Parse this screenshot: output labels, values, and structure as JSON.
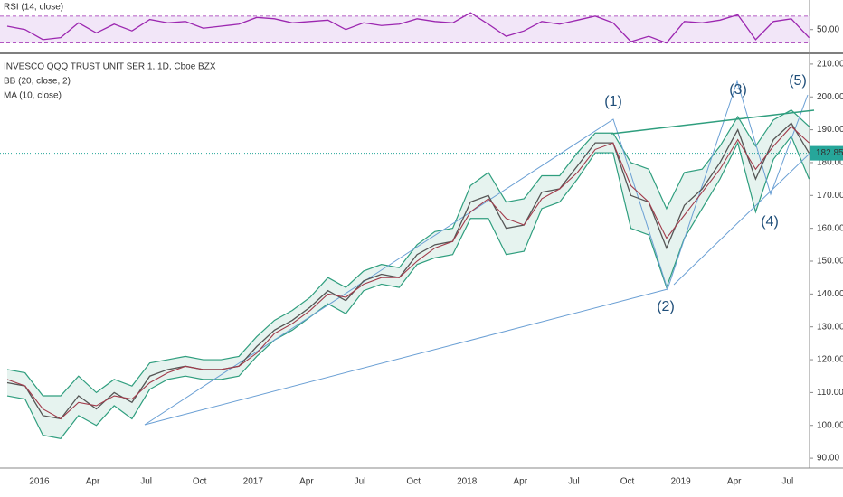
{
  "chart_data": [
    {
      "type": "line",
      "title": "RSI (14, close)",
      "categories": [
        null,
        null,
        "2016",
        null,
        null,
        "Apr",
        null,
        null,
        "Jul",
        null,
        null,
        "Oct",
        null,
        null,
        "2017",
        null,
        null,
        "Apr",
        null,
        null,
        "Jul",
        null,
        null,
        "Oct",
        null,
        null,
        "2018",
        null,
        null,
        "Apr",
        null,
        null,
        "Jul",
        null,
        null,
        "Oct",
        null,
        null,
        "2019",
        null,
        null,
        "Apr",
        null,
        null,
        "Jul",
        null
      ],
      "series": [
        {
          "color": "#9c27b0",
          "values": [
            55,
            50,
            35,
            38,
            60,
            45,
            58,
            48,
            65,
            60,
            62,
            52,
            55,
            58,
            68,
            66,
            60,
            62,
            64,
            50,
            60,
            56,
            58,
            66,
            62,
            60,
            75,
            58,
            40,
            48,
            62,
            58,
            64,
            70,
            60,
            32,
            40,
            30,
            62,
            60,
            64,
            72,
            35,
            62,
            66,
            38
          ]
        }
      ],
      "band_lines": [
        30,
        70
      ],
      "band_color": "#e9d5f3",
      "ylim": [
        16,
        94
      ],
      "yticks": [
        {
          "value": 50,
          "label": "50.00"
        }
      ]
    },
    {
      "type": "line",
      "title": "INVESCO QQQ TRUST UNIT SER 1, 1D, Cboe BZX",
      "categories": [
        null,
        null,
        "2016",
        null,
        null,
        "Apr",
        null,
        null,
        "Jul",
        null,
        null,
        "Oct",
        null,
        null,
        "2017",
        null,
        null,
        "Apr",
        null,
        null,
        "Jul",
        null,
        null,
        "Oct",
        null,
        null,
        "2018",
        null,
        null,
        "Apr",
        null,
        null,
        "Jul",
        null,
        null,
        "Oct",
        null,
        null,
        "2019",
        null,
        null,
        "Apr",
        null,
        null,
        "Jul",
        null
      ],
      "series": [
        {
          "color": "#555555",
          "values": [
            113,
            112,
            103,
            102,
            109,
            105,
            110,
            107,
            115,
            117,
            118,
            117,
            117,
            118,
            124,
            129,
            132,
            136,
            141,
            138,
            144,
            146,
            145,
            152,
            155,
            156,
            168,
            170,
            160,
            161,
            171,
            172,
            179,
            186,
            186,
            170,
            168,
            154,
            167,
            172,
            180,
            190,
            175,
            187,
            192,
            182.85
          ]
        },
        {
          "name": "MA (10, close)",
          "color": "#a23b4b",
          "values": [
            114,
            112,
            105,
            102,
            107,
            106,
            109,
            108,
            113,
            116,
            118,
            117,
            117,
            118,
            122,
            128,
            131,
            135,
            140,
            139,
            143,
            145,
            145,
            150,
            154,
            156,
            165,
            169,
            163,
            161,
            169,
            172,
            177,
            184,
            186,
            173,
            168,
            157,
            164,
            171,
            178,
            187,
            178,
            185,
            191,
            186
          ]
        }
      ],
      "bb": {
        "name": "BB (20, close, 2)",
        "color": "#2f9e7e",
        "upper": [
          117,
          116,
          109,
          109,
          115,
          110,
          114,
          112,
          119,
          120,
          121,
          120,
          120,
          121,
          127,
          132,
          135,
          139,
          145,
          142,
          147,
          149,
          148,
          155,
          159,
          160,
          173,
          177,
          168,
          169,
          176,
          176,
          183,
          189,
          189,
          180,
          178,
          166,
          177,
          178,
          185,
          194,
          185,
          193,
          196,
          191
        ],
        "lower": [
          109,
          108,
          97,
          96,
          103,
          100,
          106,
          102,
          111,
          114,
          115,
          114,
          114,
          115,
          121,
          126,
          129,
          133,
          137,
          134,
          141,
          143,
          142,
          149,
          151,
          152,
          163,
          163,
          152,
          153,
          166,
          168,
          175,
          183,
          183,
          160,
          158,
          142,
          157,
          166,
          175,
          186,
          165,
          181,
          188,
          175
        ]
      },
      "last_price": 182.85,
      "annotations": [
        "(1)",
        "(2)",
        "(3)",
        "(4)",
        "(5)"
      ],
      "ylim": [
        87,
        213
      ],
      "yticks": [
        {
          "value": 90,
          "label": "90.00"
        },
        {
          "value": 100,
          "label": "100.00"
        },
        {
          "value": 110,
          "label": "110.00"
        },
        {
          "value": 120,
          "label": "120.00"
        },
        {
          "value": 130,
          "label": "130.00"
        },
        {
          "value": 140,
          "label": "140.00"
        },
        {
          "value": 150,
          "label": "150.00"
        },
        {
          "value": 160,
          "label": "160.00"
        },
        {
          "value": 170,
          "label": "170.00"
        },
        {
          "value": 180,
          "label": "180.00"
        },
        {
          "value": 190,
          "label": "190.00"
        },
        {
          "value": 200,
          "label": "200.00"
        },
        {
          "value": 210,
          "label": "210.00"
        }
      ]
    }
  ]
}
